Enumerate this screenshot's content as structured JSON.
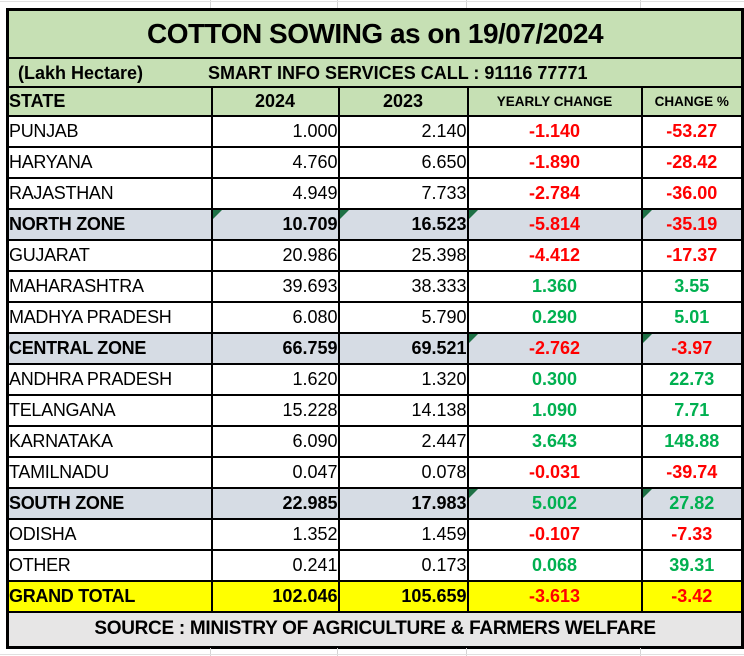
{
  "colors": {
    "banner_green_bg": "#C6E0B4",
    "zone_row_bg": "#D6DCE4",
    "total_row_bg": "#FFFF00",
    "footer_bg": "#E7E6E6",
    "negative_text": "#FF0000",
    "positive_text": "#00B050",
    "marker": "#1E7145",
    "border": "#000000",
    "gridline": "#D4D4D4"
  },
  "table": {
    "title": "COTTON SOWING  as on 19/07/2024",
    "unit_label": "(Lakh Hectare)",
    "contact": "SMART INFO SERVICES CALL : 91116 77771",
    "columns": [
      "STATE",
      "2024",
      "2023",
      "YEARLY CHANGE",
      "CHANGE %"
    ],
    "rows": [
      {
        "state": "PUNJAB",
        "y2024": "1.000",
        "y2023": "2.140",
        "change": "-1.140",
        "change_pct": "-53.27",
        "trend": "negative",
        "type": "state",
        "markers": []
      },
      {
        "state": "HARYANA",
        "y2024": "4.760",
        "y2023": "6.650",
        "change": "-1.890",
        "change_pct": "-28.42",
        "trend": "negative",
        "type": "state",
        "markers": []
      },
      {
        "state": "RAJASTHAN",
        "y2024": "4.949",
        "y2023": "7.733",
        "change": "-2.784",
        "change_pct": "-36.00",
        "trend": "negative",
        "type": "state",
        "markers": []
      },
      {
        "state": "NORTH ZONE",
        "y2024": "10.709",
        "y2023": "16.523",
        "change": "-5.814",
        "change_pct": "-35.19",
        "trend": "negative",
        "type": "zone",
        "markers": [
          "y2024",
          "y2023",
          "change",
          "change_pct"
        ]
      },
      {
        "state": "GUJARAT",
        "y2024": "20.986",
        "y2023": "25.398",
        "change": "-4.412",
        "change_pct": "-17.37",
        "trend": "negative",
        "type": "state",
        "markers": []
      },
      {
        "state": "MAHARASHTRA",
        "y2024": "39.693",
        "y2023": "38.333",
        "change": "1.360",
        "change_pct": "3.55",
        "trend": "positive",
        "type": "state",
        "markers": []
      },
      {
        "state": "MADHYA PRADESH",
        "y2024": "6.080",
        "y2023": "5.790",
        "change": "0.290",
        "change_pct": "5.01",
        "trend": "positive",
        "type": "state",
        "markers": []
      },
      {
        "state": "CENTRAL ZONE",
        "y2024": "66.759",
        "y2023": "69.521",
        "change": "-2.762",
        "change_pct": "-3.97",
        "trend": "negative",
        "type": "zone",
        "markers": [
          "change",
          "change_pct"
        ]
      },
      {
        "state": "ANDHRA PRADESH",
        "y2024": "1.620",
        "y2023": "1.320",
        "change": "0.300",
        "change_pct": "22.73",
        "trend": "positive",
        "type": "state",
        "markers": []
      },
      {
        "state": "TELANGANA",
        "y2024": "15.228",
        "y2023": "14.138",
        "change": "1.090",
        "change_pct": "7.71",
        "trend": "positive",
        "type": "state",
        "markers": []
      },
      {
        "state": "KARNATAKA",
        "y2024": "6.090",
        "y2023": "2.447",
        "change": "3.643",
        "change_pct": "148.88",
        "trend": "positive",
        "type": "state",
        "markers": []
      },
      {
        "state": "TAMILNADU",
        "y2024": "0.047",
        "y2023": "0.078",
        "change": "-0.031",
        "change_pct": "-39.74",
        "trend": "negative",
        "type": "state",
        "markers": []
      },
      {
        "state": "SOUTH ZONE",
        "y2024": "22.985",
        "y2023": "17.983",
        "change": "5.002",
        "change_pct": "27.82",
        "trend": "positive",
        "type": "zone",
        "markers": [
          "change",
          "change_pct"
        ]
      },
      {
        "state": "ODISHA",
        "y2024": "1.352",
        "y2023": "1.459",
        "change": "-0.107",
        "change_pct": "-7.33",
        "trend": "negative",
        "type": "state",
        "markers": []
      },
      {
        "state": "OTHER",
        "y2024": "0.241",
        "y2023": "0.173",
        "change": "0.068",
        "change_pct": "39.31",
        "trend": "positive",
        "type": "state",
        "markers": []
      },
      {
        "state": "GRAND TOTAL",
        "y2024": "102.046",
        "y2023": "105.659",
        "change": "-3.613",
        "change_pct": "-3.42",
        "trend": "negative",
        "type": "total",
        "markers": []
      }
    ],
    "footer": "SOURCE : MINISTRY OF AGRICULTURE & FARMERS WELFARE"
  }
}
